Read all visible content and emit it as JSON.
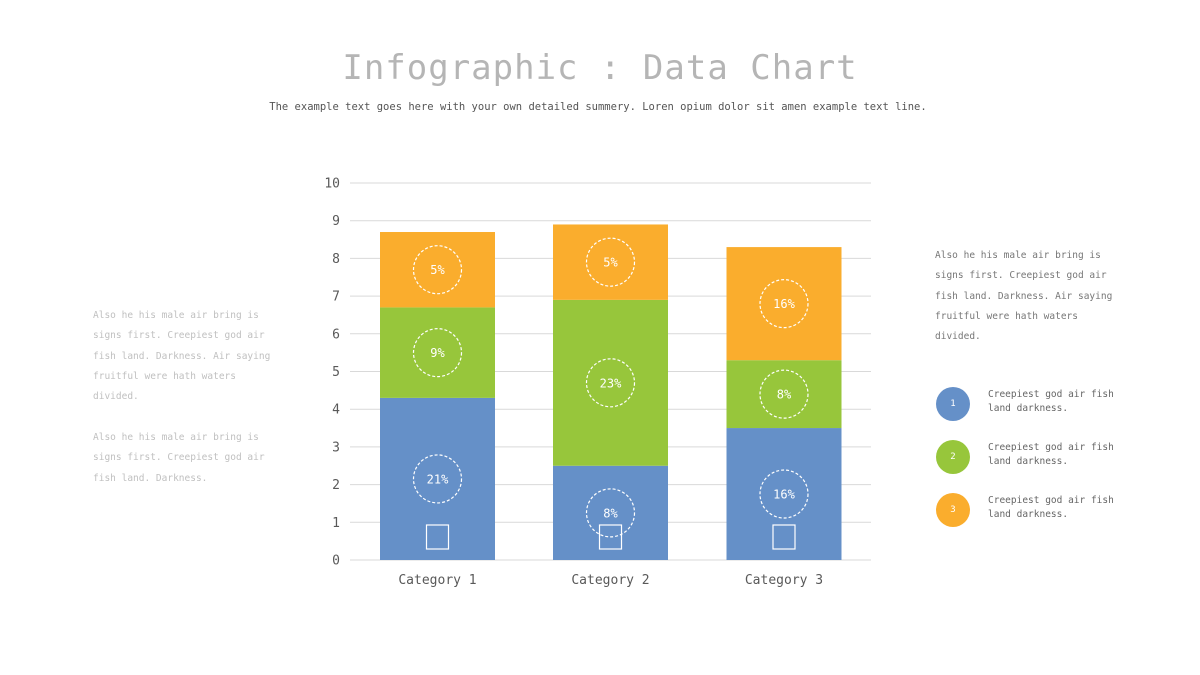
{
  "header": {
    "title": "Infographic : Data Chart",
    "subtitle": "The example text goes here with your own detailed summery. Loren opium dolor sit amen example text line."
  },
  "left_panel": {
    "paragraph_1": "Also he his male air bring is signs first. Creepiest god air fish land. Darkness. Air saying fruitful were hath waters divided.",
    "paragraph_2": "Also he his male air bring is signs first. Creepiest god air fish land. Darkness."
  },
  "right_panel": {
    "paragraph": "Also he his male air bring is signs first. Creepiest god air fish land. Darkness. Air saying fruitful were hath waters divided.",
    "legend": [
      {
        "number": "1",
        "text": "Creepiest god air fish land darkness.",
        "color": "#6590c8"
      },
      {
        "number": "2",
        "text": "Creepiest god air fish land darkness.",
        "color": "#97c63b"
      },
      {
        "number": "3",
        "text": "Creepiest god air fish land darkness.",
        "color": "#faad2d"
      }
    ]
  },
  "chart_data": {
    "type": "bar",
    "stacked": true,
    "categories": [
      "Category 1",
      "Category 2",
      "Category 3"
    ],
    "series": [
      {
        "color": "#6590c8",
        "values": [
          4.3,
          2.5,
          3.5
        ],
        "labels": [
          "21%",
          "8%",
          "16%"
        ]
      },
      {
        "color": "#97c63b",
        "values": [
          2.4,
          4.4,
          1.8
        ],
        "labels": [
          "9%",
          "23%",
          "8%"
        ]
      },
      {
        "color": "#faad2d",
        "values": [
          2.0,
          2.0,
          3.0
        ],
        "labels": [
          "5%",
          "5%",
          "16%"
        ]
      }
    ],
    "ylim": [
      0,
      10
    ],
    "yticks": [
      "0",
      "1",
      "2",
      "3",
      "4",
      "5",
      "6",
      "7",
      "8",
      "9",
      "10"
    ],
    "grid": true,
    "axis_color": "#d9d9d9",
    "tick_label_color": "#595959",
    "legend_placement": "right"
  }
}
